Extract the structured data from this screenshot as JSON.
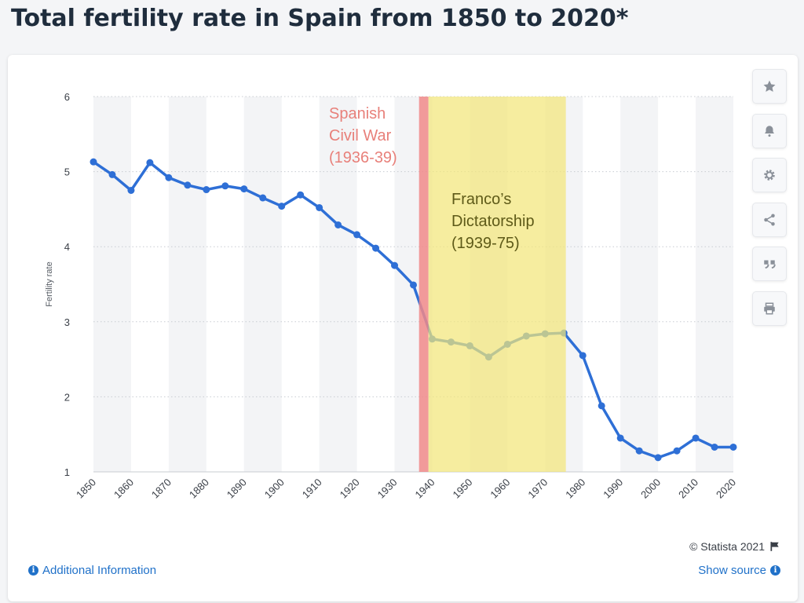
{
  "page": {
    "title": "Total fertility rate in Spain from 1850 to 2020*"
  },
  "chart_data": {
    "type": "line",
    "ylabel": "Fertility rate",
    "xlabel": "",
    "ylim": [
      1,
      6
    ],
    "y_ticks": [
      1,
      2,
      3,
      4,
      5,
      6
    ],
    "xlim": [
      1850,
      2020
    ],
    "x_ticks": [
      1850,
      1860,
      1870,
      1880,
      1890,
      1900,
      1910,
      1920,
      1930,
      1940,
      1950,
      1960,
      1970,
      1980,
      1990,
      2000,
      2010,
      2020
    ],
    "grid": true,
    "series": [
      {
        "color": "#2e6fd6",
        "x": [
          1850,
          1855,
          1860,
          1865,
          1870,
          1875,
          1880,
          1885,
          1890,
          1895,
          1900,
          1905,
          1910,
          1915,
          1920,
          1925,
          1930,
          1935,
          1940,
          1945,
          1950,
          1955,
          1960,
          1965,
          1970,
          1975,
          1980,
          1985,
          1990,
          1995,
          2000,
          2005,
          2010,
          2015,
          2020
        ],
        "y": [
          5.13,
          4.96,
          4.75,
          5.12,
          4.92,
          4.82,
          4.76,
          4.81,
          4.77,
          4.65,
          4.54,
          4.69,
          4.52,
          4.29,
          4.16,
          3.98,
          3.75,
          3.49,
          2.77,
          2.73,
          2.68,
          2.53,
          2.7,
          2.81,
          2.84,
          2.85,
          2.55,
          1.88,
          1.45,
          1.28,
          1.19,
          1.28,
          1.45,
          1.33,
          1.33
        ]
      }
    ],
    "bands": [
      {
        "from": 1936.5,
        "to": 1939,
        "color": "#f08a8a"
      },
      {
        "from": 1939,
        "to": 1975.5,
        "color": "#f2e67a"
      }
    ],
    "annotations": [
      {
        "lines": [
          "Spanish",
          "Civil War",
          "(1936-39)"
        ],
        "color": "#e8807a"
      },
      {
        "lines": [
          "Franco’s",
          "Dictatorship",
          "(1939-75)"
        ],
        "color": "#5e5a18"
      }
    ]
  },
  "toolbar": {
    "icons": [
      "star-icon",
      "bell-icon",
      "gear-icon",
      "share-icon",
      "quote-icon",
      "print-icon"
    ]
  },
  "footer": {
    "credit": "© Statista 2021",
    "additional_info": "Additional Information",
    "show_source": "Show source"
  }
}
